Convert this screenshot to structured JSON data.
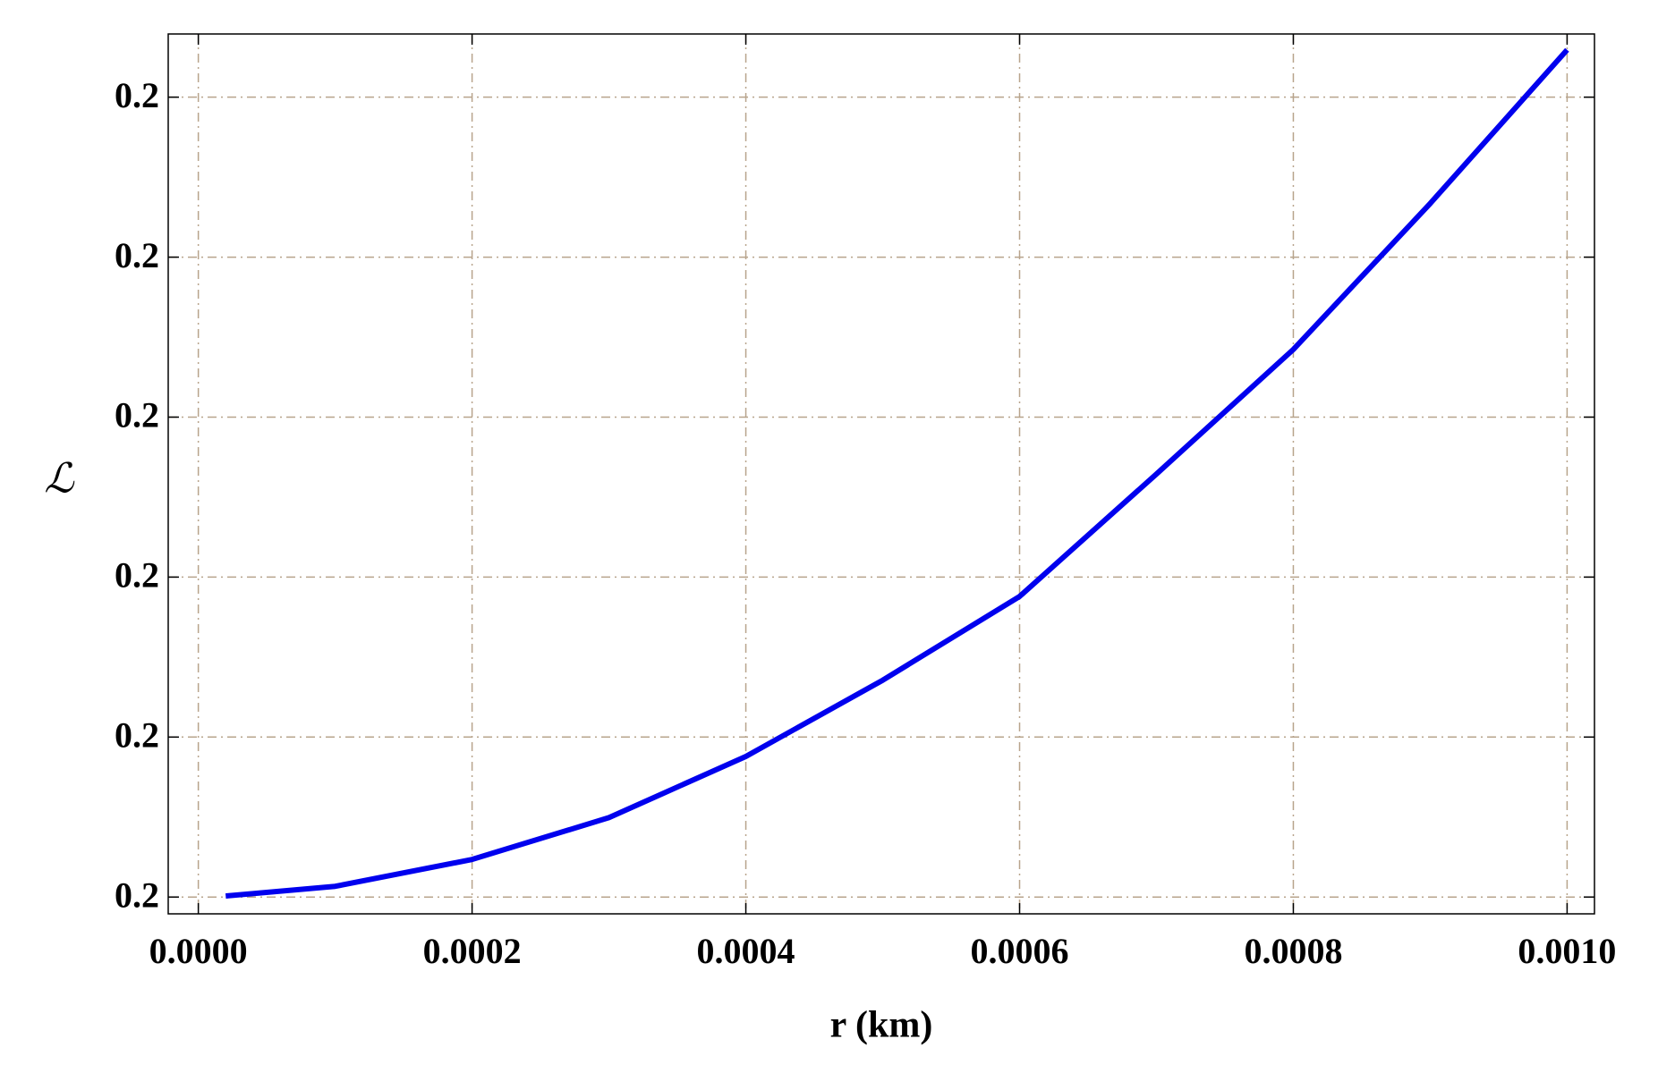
{
  "chart_data": {
    "type": "line",
    "x_label": "r (km)",
    "y_label": "ℒ",
    "x": [
      2e-05,
      0.0001,
      0.0002,
      0.0003,
      0.0004,
      0.0005,
      0.0006,
      0.0007,
      0.0008,
      0.0009,
      0.001
    ],
    "series": [
      {
        "name": "ℒ",
        "color": "#0000ee",
        "values": [
          0.2000013,
          0.2000134,
          0.200047,
          0.2000993,
          0.2001758,
          0.2002711,
          0.2003758,
          0.2005289,
          0.2006846,
          0.2008671,
          0.2010591
        ]
      }
    ],
    "xlim": [
      -2.2e-05,
      0.00102
    ],
    "ylim": [
      0.199979,
      0.201079
    ],
    "xticks": [
      {
        "value": 0,
        "label": "0.0000"
      },
      {
        "value": 0.0002,
        "label": "0.0002"
      },
      {
        "value": 0.0004,
        "label": "0.0004"
      },
      {
        "value": 0.0006,
        "label": "0.0006"
      },
      {
        "value": 0.0008,
        "label": "0.0008"
      },
      {
        "value": 0.001,
        "label": "0.0010"
      }
    ],
    "yticks": [
      {
        "value": 0.2,
        "label": "0.2"
      },
      {
        "value": 0.2002,
        "label": "0.2"
      },
      {
        "value": 0.2004,
        "label": "0.2"
      },
      {
        "value": 0.2006,
        "label": "0.2"
      },
      {
        "value": 0.2008,
        "label": "0.2"
      },
      {
        "value": 0.201,
        "label": "0.2"
      }
    ],
    "grid": true,
    "grid_color": "#b8a48c"
  }
}
